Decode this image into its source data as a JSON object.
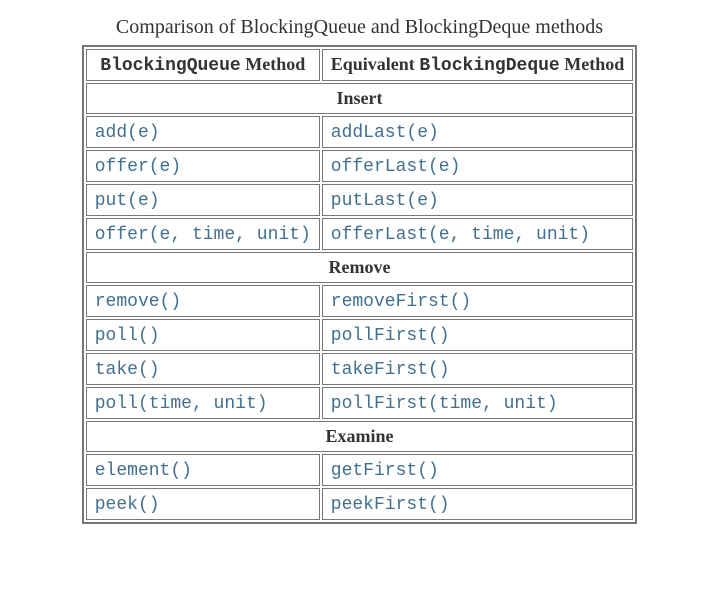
{
  "caption": "Comparison of BlockingQueue and BlockingDeque methods",
  "headers": {
    "col1_code": "BlockingQueue",
    "col1_suffix": " Method",
    "col2_prefix": "Equivalent ",
    "col2_code": "BlockingDeque",
    "col2_suffix": " Method"
  },
  "sections": [
    {
      "title": "Insert",
      "rows": [
        {
          "left": "add(e)",
          "right": "addLast(e)"
        },
        {
          "left": "offer(e)",
          "right": "offerLast(e)"
        },
        {
          "left": "put(e)",
          "right": "putLast(e)"
        },
        {
          "left": "offer(e, time, unit)",
          "right": "offerLast(e, time, unit)"
        }
      ]
    },
    {
      "title": "Remove",
      "rows": [
        {
          "left": "remove()",
          "right": "removeFirst()"
        },
        {
          "left": "poll()",
          "right": "pollFirst()"
        },
        {
          "left": "take()",
          "right": "takeFirst()"
        },
        {
          "left": "poll(time, unit)",
          "right": "pollFirst(time, unit)"
        }
      ]
    },
    {
      "title": "Examine",
      "rows": [
        {
          "left": "element()",
          "right": "getFirst()"
        },
        {
          "left": "peek()",
          "right": "peekFirst()"
        }
      ]
    }
  ],
  "styling": {
    "link_color": "#436f8e",
    "text_color": "#333333",
    "border_color": "#777777",
    "background_color": "#ffffff",
    "header_fontsize": 18,
    "caption_fontsize": 20,
    "cell_fontsize": 18,
    "code_font": "Consolas",
    "serif_font": "Georgia"
  }
}
